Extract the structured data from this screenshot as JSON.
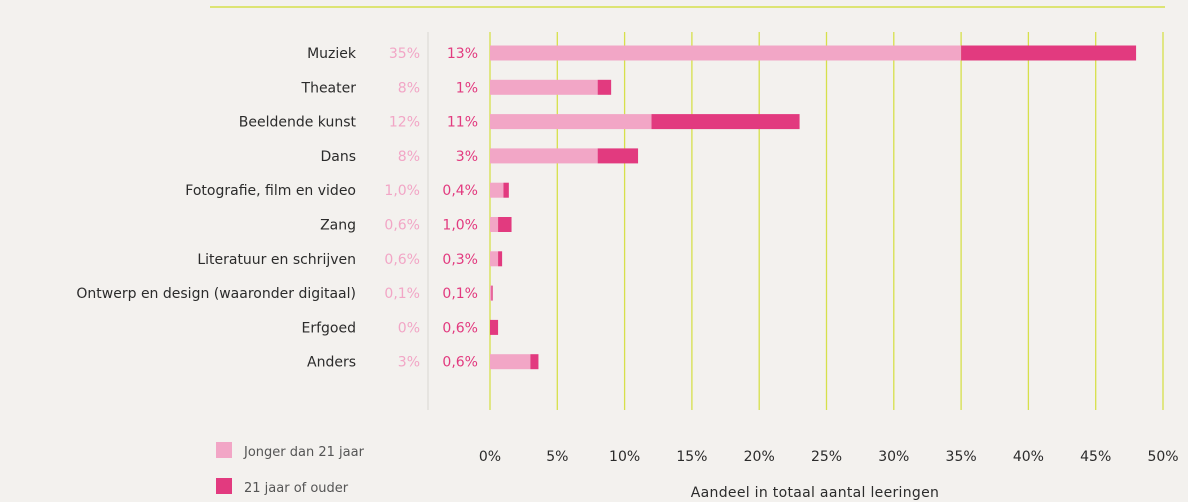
{
  "chart_data": {
    "type": "bar",
    "orientation": "horizontal",
    "stacked": true,
    "categories": [
      "Muziek",
      "Theater",
      "Beeldende kunst",
      "Dans",
      "Fotografie, film en video",
      "Zang",
      "Literatuur en schrijven",
      "Ontwerp en design (waaronder digitaal)",
      "Erfgoed",
      "Anders"
    ],
    "series": [
      {
        "name": "Jonger dan 21 jaar",
        "values": [
          35,
          8,
          12,
          8,
          1.0,
          0.6,
          0.6,
          0.1,
          0,
          3
        ],
        "labels": [
          "35%",
          "8%",
          "12%",
          "8%",
          "1,0%",
          "0,6%",
          "0,6%",
          "0,1%",
          "0%",
          "3%"
        ],
        "color": "#f2a6c6"
      },
      {
        "name": "21 jaar of ouder",
        "values": [
          13,
          1,
          11,
          3,
          0.4,
          1.0,
          0.3,
          0.1,
          0.6,
          0.6
        ],
        "labels": [
          "13%",
          "1%",
          "11%",
          "3%",
          "0,4%",
          "1,0%",
          "0,3%",
          "0,1%",
          "0,6%",
          "0,6%"
        ],
        "color": "#e23a7f"
      }
    ],
    "xlim": [
      0,
      50
    ],
    "xticks": [
      0,
      5,
      10,
      15,
      20,
      25,
      30,
      35,
      40,
      45,
      50
    ],
    "xtick_labels": [
      "0%",
      "5%",
      "10%",
      "15%",
      "20%",
      "25%",
      "30%",
      "35%",
      "40%",
      "45%",
      "50%"
    ],
    "xlabel": "Aandeel in totaal aantal leeringen",
    "grid": true,
    "grid_color": "#d6e04a",
    "legend_position": "bottom-left"
  }
}
